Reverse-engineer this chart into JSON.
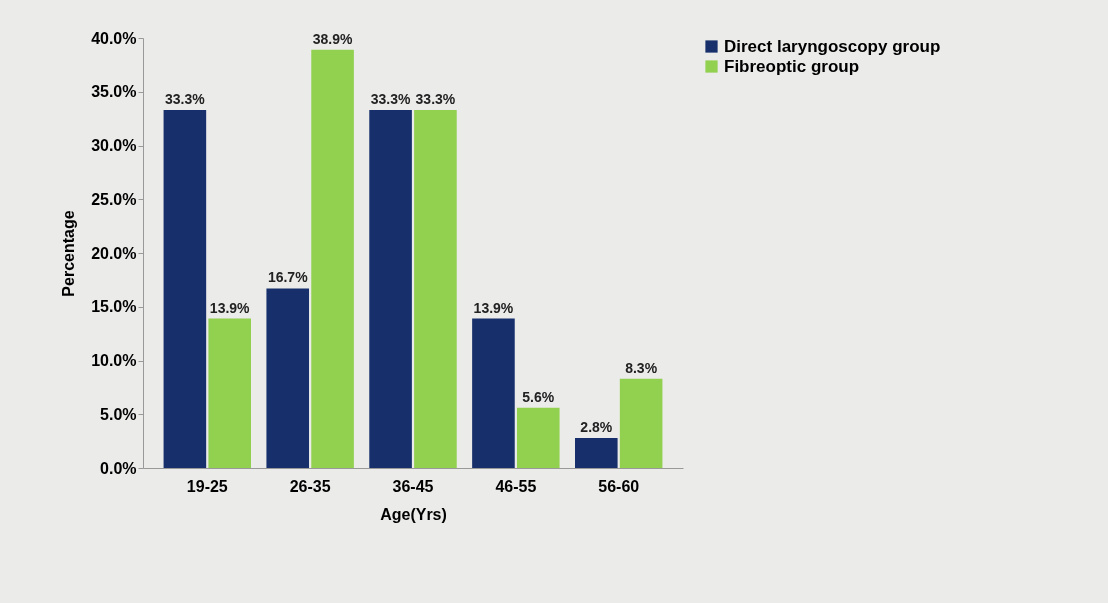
{
  "chart_data": {
    "type": "bar",
    "xlabel": "Age(Yrs)",
    "ylabel": "Percentage",
    "categories": [
      "19-25",
      "26-35",
      "36-45",
      "46-55",
      "56-60"
    ],
    "series": [
      {
        "name": "Direct laryngoscopy group",
        "color": "#17306b",
        "values": [
          33.3,
          16.7,
          33.3,
          13.9,
          2.8
        ],
        "value_labels": [
          "33.3%",
          "16.7%",
          "33.3%",
          "13.9%",
          "2.8%"
        ]
      },
      {
        "name": "Fibreoptic group",
        "color": "#92d050",
        "values": [
          13.9,
          38.9,
          33.3,
          5.6,
          8.3
        ],
        "value_labels": [
          "13.9%",
          "38.9%",
          "33.3%",
          "5.6%",
          "8.3%"
        ]
      }
    ],
    "ylim": [
      0,
      40
    ],
    "yticks": [
      {
        "value": 0,
        "label": "0.0%"
      },
      {
        "value": 5,
        "label": "5.0%"
      },
      {
        "value": 10,
        "label": "10.0%"
      },
      {
        "value": 15,
        "label": "15.0%"
      },
      {
        "value": 20,
        "label": "20.0%"
      },
      {
        "value": 25,
        "label": "25.0%"
      },
      {
        "value": 30,
        "label": "30.0%"
      },
      {
        "value": 35,
        "label": "35.0%"
      },
      {
        "value": 40,
        "label": "40.0%"
      }
    ],
    "legend": "right",
    "grid": false
  }
}
